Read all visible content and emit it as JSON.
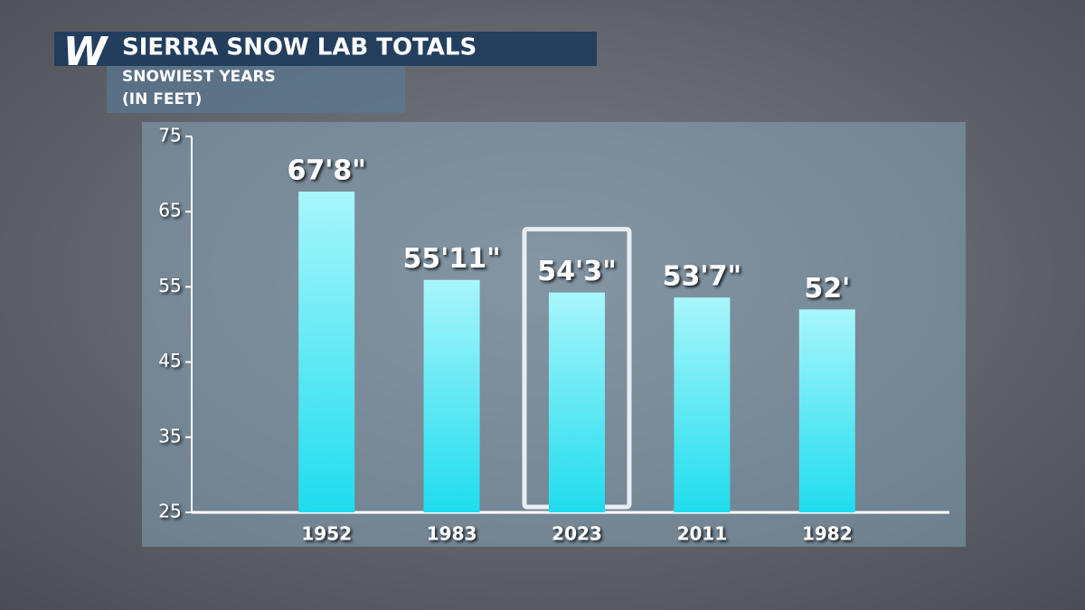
{
  "chart_data": {
    "type": "bar",
    "logo": "W",
    "title": "SIERRA SNOW LAB TOTALS",
    "subtitle": "SNOWIEST YEARS",
    "y_label": "(IN FEET)",
    "categories": [
      "1952",
      "1983",
      "2023",
      "2011",
      "1982"
    ],
    "values": [
      67.67,
      55.92,
      54.25,
      53.58,
      52
    ],
    "value_labels": [
      "67'8\"",
      "55'11\"",
      "54'3\"",
      "53'7\"",
      "52'"
    ],
    "color": "#2ee0f0",
    "highlight_index": 2,
    "ylim": [
      25,
      75
    ],
    "yticks": [
      25,
      35,
      45,
      55,
      65,
      75
    ]
  }
}
